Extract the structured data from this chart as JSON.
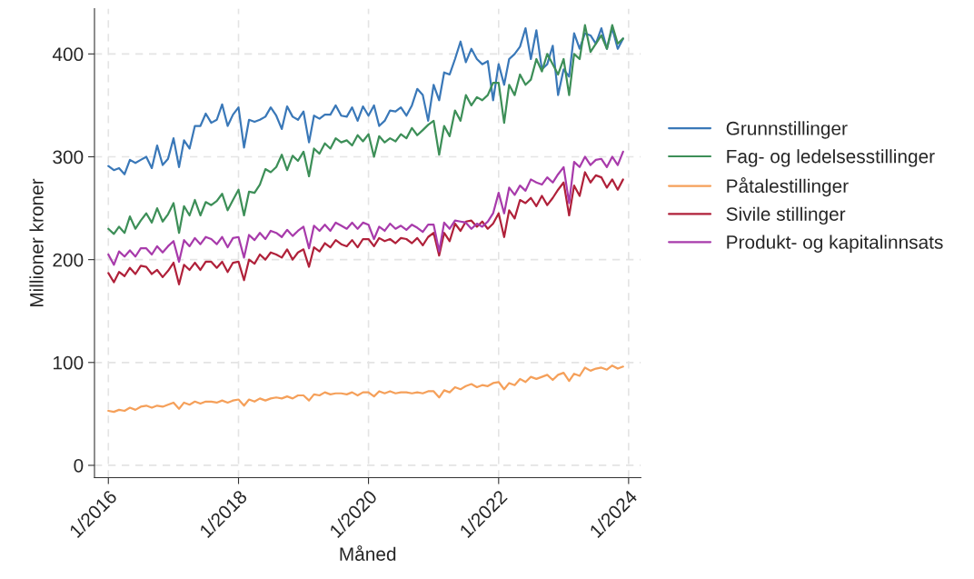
{
  "chart_data": {
    "type": "line",
    "xlabel": "Måned",
    "ylabel": "Millioner kroner",
    "x": [
      "2016-01",
      "2016-02",
      "2016-03",
      "2016-04",
      "2016-05",
      "2016-06",
      "2016-07",
      "2016-08",
      "2016-09",
      "2016-10",
      "2016-11",
      "2016-12",
      "2017-01",
      "2017-02",
      "2017-03",
      "2017-04",
      "2017-05",
      "2017-06",
      "2017-07",
      "2017-08",
      "2017-09",
      "2017-10",
      "2017-11",
      "2017-12",
      "2018-01",
      "2018-02",
      "2018-03",
      "2018-04",
      "2018-05",
      "2018-06",
      "2018-07",
      "2018-08",
      "2018-09",
      "2018-10",
      "2018-11",
      "2018-12",
      "2019-01",
      "2019-02",
      "2019-03",
      "2019-04",
      "2019-05",
      "2019-06",
      "2019-07",
      "2019-08",
      "2019-09",
      "2019-10",
      "2019-11",
      "2019-12",
      "2020-01",
      "2020-02",
      "2020-03",
      "2020-04",
      "2020-05",
      "2020-06",
      "2020-07",
      "2020-08",
      "2020-09",
      "2020-10",
      "2020-11",
      "2020-12",
      "2021-01",
      "2021-02",
      "2021-03",
      "2021-04",
      "2021-05",
      "2021-06",
      "2021-07",
      "2021-08",
      "2021-09",
      "2021-10",
      "2021-11",
      "2021-12",
      "2022-01",
      "2022-02",
      "2022-03",
      "2022-04",
      "2022-05",
      "2022-06",
      "2022-07",
      "2022-08",
      "2022-09",
      "2022-10",
      "2022-11",
      "2022-12",
      "2023-01",
      "2023-02",
      "2023-03",
      "2023-04",
      "2023-05",
      "2023-06",
      "2023-07",
      "2023-08",
      "2023-09",
      "2023-10",
      "2023-11",
      "2023-12"
    ],
    "series": [
      {
        "name": "Grunnstillinger",
        "color": "#3a78b8",
        "values": [
          291,
          287,
          289,
          283,
          297,
          294,
          297,
          300,
          289,
          311,
          292,
          298,
          318,
          290,
          316,
          308,
          330,
          330,
          342,
          333,
          336,
          351,
          330,
          341,
          348,
          309,
          336,
          334,
          336,
          339,
          348,
          340,
          327,
          349,
          339,
          336,
          344,
          314,
          340,
          337,
          341,
          341,
          350,
          340,
          339,
          348,
          335,
          349,
          340,
          350,
          330,
          335,
          345,
          344,
          348,
          340,
          350,
          366,
          360,
          335,
          370,
          355,
          382,
          380,
          395,
          412,
          392,
          405,
          395,
          390,
          393,
          355,
          390,
          370,
          395,
          400,
          407,
          425,
          395,
          423,
          385,
          390,
          408,
          360,
          385,
          378,
          420,
          405,
          420,
          418,
          410,
          425,
          405,
          425,
          405,
          415
        ]
      },
      {
        "name": "Fag- og ledelsesstillinger",
        "color": "#3d8f58",
        "values": [
          230,
          225,
          232,
          226,
          242,
          230,
          238,
          245,
          236,
          250,
          237,
          244,
          255,
          226,
          252,
          243,
          258,
          243,
          256,
          253,
          257,
          264,
          248,
          258,
          268,
          243,
          266,
          265,
          273,
          288,
          285,
          290,
          302,
          287,
          301,
          296,
          305,
          281,
          308,
          303,
          313,
          308,
          318,
          314,
          316,
          311,
          321,
          315,
          322,
          300,
          320,
          314,
          318,
          315,
          322,
          318,
          328,
          321,
          326,
          331,
          335,
          302,
          330,
          320,
          345,
          335,
          360,
          350,
          358,
          355,
          360,
          372,
          372,
          333,
          370,
          360,
          380,
          370,
          375,
          395,
          383,
          400,
          390,
          380,
          395,
          360,
          400,
          395,
          428,
          402,
          410,
          418,
          405,
          428,
          410,
          415
        ]
      },
      {
        "name": "Påtalestillinger",
        "color": "#f5a05a",
        "values": [
          53,
          52,
          54,
          53,
          56,
          54,
          57,
          58,
          56,
          58,
          57,
          59,
          61,
          55,
          61,
          59,
          62,
          60,
          62,
          62,
          61,
          63,
          61,
          63,
          64,
          58,
          64,
          62,
          65,
          63,
          65,
          66,
          65,
          67,
          65,
          68,
          68,
          63,
          69,
          68,
          71,
          69,
          70,
          70,
          69,
          71,
          68,
          71,
          71,
          67,
          72,
          70,
          72,
          70,
          71,
          71,
          70,
          71,
          70,
          72,
          72,
          66,
          73,
          71,
          76,
          74,
          77,
          79,
          76,
          78,
          77,
          80,
          81,
          74,
          80,
          78,
          84,
          81,
          86,
          84,
          86,
          88,
          83,
          88,
          90,
          82,
          89,
          87,
          95,
          92,
          94,
          95,
          93,
          97,
          94,
          96
        ]
      },
      {
        "name": "Sivile stillinger",
        "color": "#b0213a",
        "values": [
          187,
          178,
          188,
          184,
          192,
          186,
          194,
          193,
          186,
          190,
          183,
          189,
          197,
          176,
          195,
          190,
          197,
          190,
          198,
          198,
          192,
          198,
          188,
          197,
          198,
          180,
          200,
          196,
          205,
          200,
          207,
          205,
          202,
          210,
          200,
          207,
          210,
          193,
          212,
          208,
          216,
          212,
          219,
          215,
          213,
          219,
          212,
          220,
          220,
          213,
          221,
          218,
          220,
          216,
          221,
          220,
          216,
          221,
          214,
          222,
          226,
          204,
          226,
          218,
          235,
          228,
          237,
          238,
          232,
          237,
          230,
          235,
          245,
          222,
          248,
          240,
          258,
          255,
          260,
          252,
          262,
          253,
          260,
          268,
          275,
          243,
          272,
          262,
          285,
          275,
          282,
          280,
          270,
          278,
          268,
          278
        ]
      },
      {
        "name": "Produkt- og kapitalinnsats",
        "color": "#a83bab",
        "values": [
          205,
          195,
          208,
          203,
          209,
          203,
          211,
          211,
          205,
          213,
          207,
          213,
          218,
          198,
          219,
          213,
          221,
          215,
          222,
          220,
          215,
          222,
          212,
          221,
          222,
          202,
          224,
          219,
          226,
          220,
          228,
          226,
          222,
          229,
          223,
          228,
          232,
          211,
          233,
          228,
          234,
          228,
          236,
          233,
          230,
          236,
          230,
          236,
          234,
          220,
          232,
          228,
          235,
          230,
          233,
          229,
          234,
          231,
          227,
          234,
          234,
          208,
          236,
          230,
          238,
          237,
          236,
          230,
          235,
          232,
          237,
          245,
          265,
          245,
          270,
          263,
          272,
          267,
          278,
          275,
          273,
          280,
          275,
          283,
          290,
          255,
          295,
          290,
          300,
          292,
          297,
          298,
          290,
          300,
          292,
          305
        ]
      }
    ],
    "xlim": [
      "2015-10-15",
      "2024-03-10"
    ],
    "xticks": [
      {
        "value": "2016-01",
        "label": "1/2016"
      },
      {
        "value": "2018-01",
        "label": "1/2018"
      },
      {
        "value": "2020-01",
        "label": "1/2020"
      },
      {
        "value": "2022-01",
        "label": "1/2022"
      },
      {
        "value": "2024-01",
        "label": "1/2024"
      }
    ],
    "ylim": [
      -12,
      444
    ],
    "yticks": [
      0,
      100,
      200,
      300,
      400
    ],
    "grid": true,
    "legend": "right",
    "line_style": "solid"
  }
}
